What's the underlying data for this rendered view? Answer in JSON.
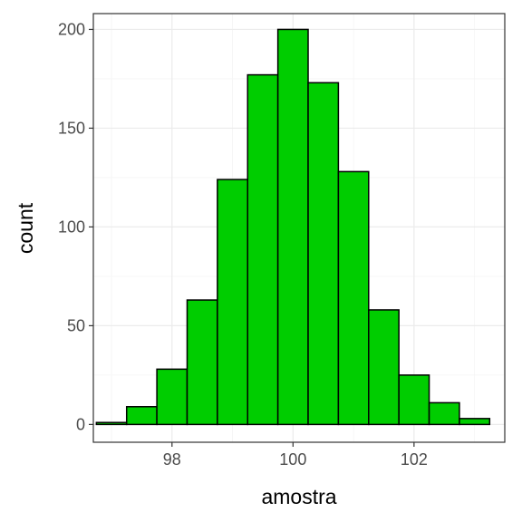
{
  "chart_data": {
    "type": "bar",
    "subtype": "histogram",
    "xlabel": "amostra",
    "ylabel": "count",
    "xlim": [
      96.7,
      103.5
    ],
    "ylim": [
      -9,
      208
    ],
    "x_ticks": [
      98,
      100,
      102
    ],
    "y_ticks": [
      0,
      50,
      100,
      150,
      200
    ],
    "bin_width": 0.5,
    "bins": [
      {
        "x": 97.0,
        "count": 1
      },
      {
        "x": 97.5,
        "count": 9
      },
      {
        "x": 98.0,
        "count": 28
      },
      {
        "x": 98.5,
        "count": 63
      },
      {
        "x": 99.0,
        "count": 124
      },
      {
        "x": 99.5,
        "count": 177
      },
      {
        "x": 100.0,
        "count": 200
      },
      {
        "x": 100.5,
        "count": 173
      },
      {
        "x": 101.0,
        "count": 128
      },
      {
        "x": 101.5,
        "count": 58
      },
      {
        "x": 102.0,
        "count": 25
      },
      {
        "x": 102.5,
        "count": 11
      },
      {
        "x": 103.0,
        "count": 3
      }
    ],
    "colors": {
      "bar_fill": "#00cd00",
      "bar_stroke": "#000000",
      "grid_major": "#ebebeb",
      "grid_minor": "#f5f5f5",
      "panel_border": "#333333"
    },
    "grid": true,
    "legend": "none"
  }
}
